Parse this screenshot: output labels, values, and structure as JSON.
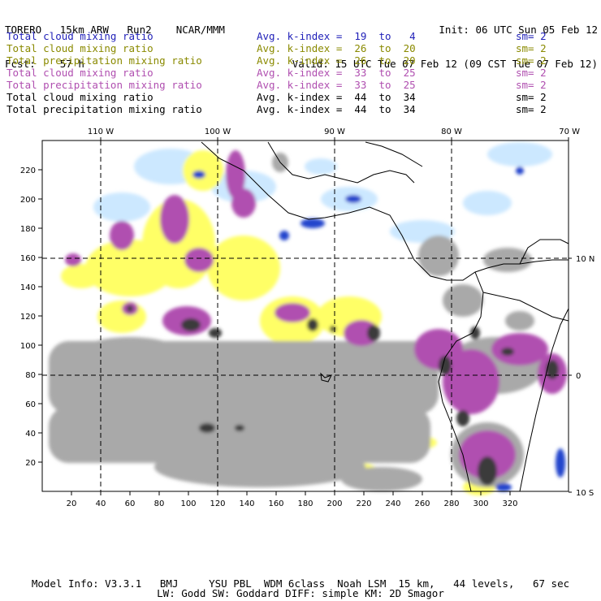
{
  "header": {
    "model": "TORERO   15km ARW   Run2    NCAR/MMM",
    "init": "Init: 06 UTC Sun 05 Feb 12",
    "fcst_label": "Fcst:",
    "fcst_value": "57 h",
    "valid": "Valid: 15 UTC Tue 07 Feb 12 (09 CST Tue 07 Feb 12)"
  },
  "legend": [
    {
      "name": "Total cloud mixing ratio",
      "index": "Avg. k-index =  19  to   4",
      "sm": "sm= 2",
      "color": "#1f1fb8"
    },
    {
      "name": "Total cloud mixing ratio",
      "index": "Avg. k-index =  26  to  20",
      "sm": "sm= 2",
      "color": "#8a8a00"
    },
    {
      "name": "Total precipitation mixing ratio",
      "index": "Avg. k-index =  26  to  20",
      "sm": "sm= 2",
      "color": "#8a8a00"
    },
    {
      "name": "Total cloud mixing ratio",
      "index": "Avg. k-index =  33  to  25",
      "sm": "sm= 2",
      "color": "#b04fb0"
    },
    {
      "name": "Total precipitation mixing ratio",
      "index": "Avg. k-index =  33  to  25",
      "sm": "sm= 2",
      "color": "#b04fb0"
    },
    {
      "name": "Total cloud mixing ratio",
      "index": "Avg. k-index =  44  to  34",
      "sm": "sm= 2",
      "color": "#000000"
    },
    {
      "name": "Total precipitation mixing ratio",
      "index": "Avg. k-index =  44  to  34",
      "sm": "sm= 2",
      "color": "#000000"
    }
  ],
  "axes": {
    "x_ticks": [
      "20",
      "40",
      "60",
      "80",
      "100",
      "120",
      "140",
      "160",
      "180",
      "200",
      "220",
      "240",
      "260",
      "280",
      "300",
      "320"
    ],
    "y_ticks": [
      "20",
      "40",
      "60",
      "80",
      "100",
      "120",
      "140",
      "160",
      "180",
      "200",
      "220"
    ],
    "lon_labels": [
      "110 W",
      "100 W",
      "90 W",
      "80 W",
      "70 W"
    ],
    "lat_labels": [
      "10 N",
      "0",
      "10 S"
    ]
  },
  "colors": {
    "gray": "#a9a9a9",
    "dark": "#3a3a3a",
    "yellow": "#ffff66",
    "purple": "#b04fb0",
    "lightblue": "#cce8ff",
    "blue": "#2244cc"
  },
  "footer": {
    "line1": "Model Info: V3.3.1   BMJ     YSU PBL  WDM 6class  Noah LSM  15 km,   44 levels,   67 sec",
    "line2": "LW: Godd SW: Goddard DIFF: simple KM: 2D Smagor"
  }
}
